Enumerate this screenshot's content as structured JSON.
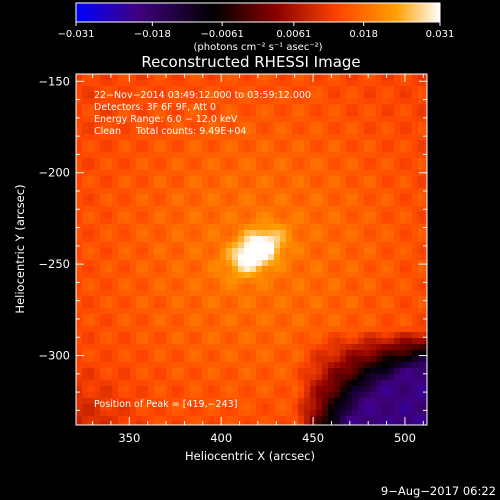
{
  "chart_data": {
    "type": "heatmap",
    "title": "Reconstructed RHESSI Image",
    "xlabel": "Heliocentric X (arcsec)",
    "ylabel": "Heliocentric Y (arcsec)",
    "xlim": [
      321,
      512
    ],
    "ylim": [
      -338,
      -146
    ],
    "x_ticks": [
      350,
      400,
      450,
      500
    ],
    "y_ticks": [
      -150,
      -200,
      -250,
      -300
    ],
    "x_tick_labels": [
      "350",
      "400",
      "450",
      "500"
    ],
    "y_tick_labels": [
      "−150",
      "−200",
      "−250",
      "−300"
    ],
    "colorbar": {
      "range": [
        -0.031,
        0.031
      ],
      "ticks": [
        -0.031,
        -0.018,
        -0.0061,
        0.0061,
        0.018,
        0.031
      ],
      "tick_labels": [
        "−0.031",
        "−0.018",
        "−0.0061",
        "0.0061",
        "0.018",
        "0.031"
      ],
      "units_label": "(photons cm⁻² s⁻¹ asec⁻²)"
    },
    "annotations": [
      "22−Nov−2014 03:49:12.000 to 03:59:12.000",
      "Detectors: 3F 6F 9F, Att 0",
      "Energy Range: 6.0 − 12.0 keV",
      "Clean     Total counts: 9.49E+04"
    ],
    "peak_label": "Position of Peak = [419,−243]",
    "peak": {
      "x": 419,
      "y": -243
    },
    "timestamp": "9−Aug−2017 06:22",
    "colors": {
      "colormap": [
        "#0000ff",
        "#400080",
        "#000000",
        "#8a0000",
        "#ff4400",
        "#ffa000",
        "#ffffff"
      ],
      "background": "#000000",
      "text": "#ffffff"
    }
  }
}
